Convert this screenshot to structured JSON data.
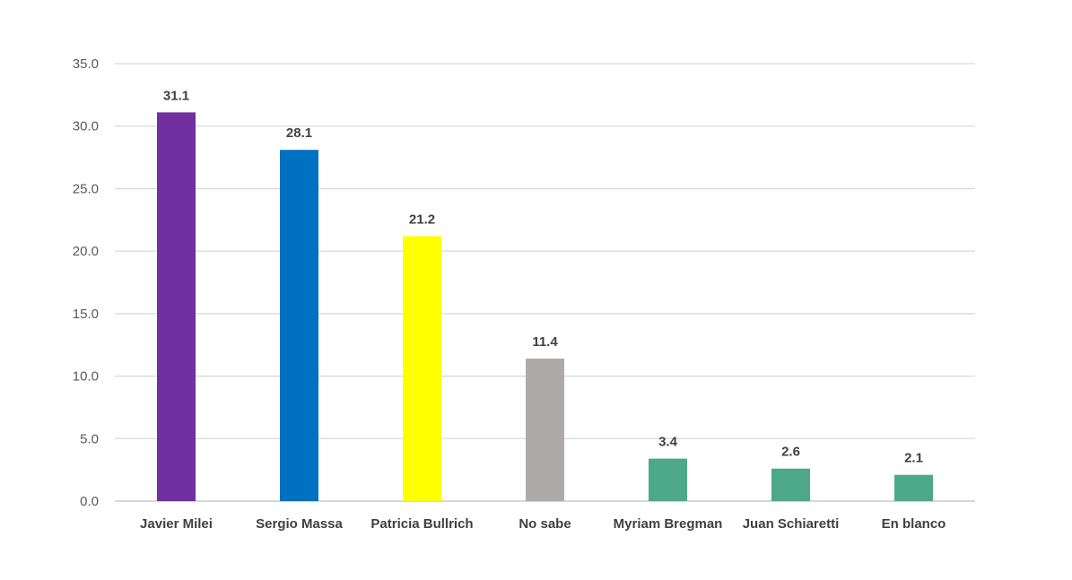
{
  "chart_data": {
    "type": "bar",
    "title": "",
    "xlabel": "",
    "ylabel": "",
    "categories": [
      "Javier Milei",
      "Sergio Massa",
      "Patricia Bullrich",
      "No sabe",
      "Myriam Bregman",
      "Juan Schiaretti",
      "En blanco"
    ],
    "values": [
      31.1,
      28.1,
      21.2,
      11.4,
      3.4,
      2.6,
      2.1
    ],
    "data_labels": [
      "31.1",
      "28.1",
      "21.2",
      "11.4",
      "3.4",
      "2.6",
      "2.1"
    ],
    "colors": [
      "#7030a0",
      "#0070c0",
      "#ffff00",
      "#aeaaaa",
      "#4da88a",
      "#4da88a",
      "#4da88a"
    ],
    "ylim": [
      0,
      35
    ],
    "y_ticks": [
      0,
      5,
      10,
      15,
      20,
      25,
      30,
      35
    ],
    "y_tick_labels": [
      "0.0",
      "5.0",
      "10.0",
      "15.0",
      "20.0",
      "25.0",
      "30.0",
      "35.0"
    ],
    "grid": true,
    "legend": "none"
  }
}
